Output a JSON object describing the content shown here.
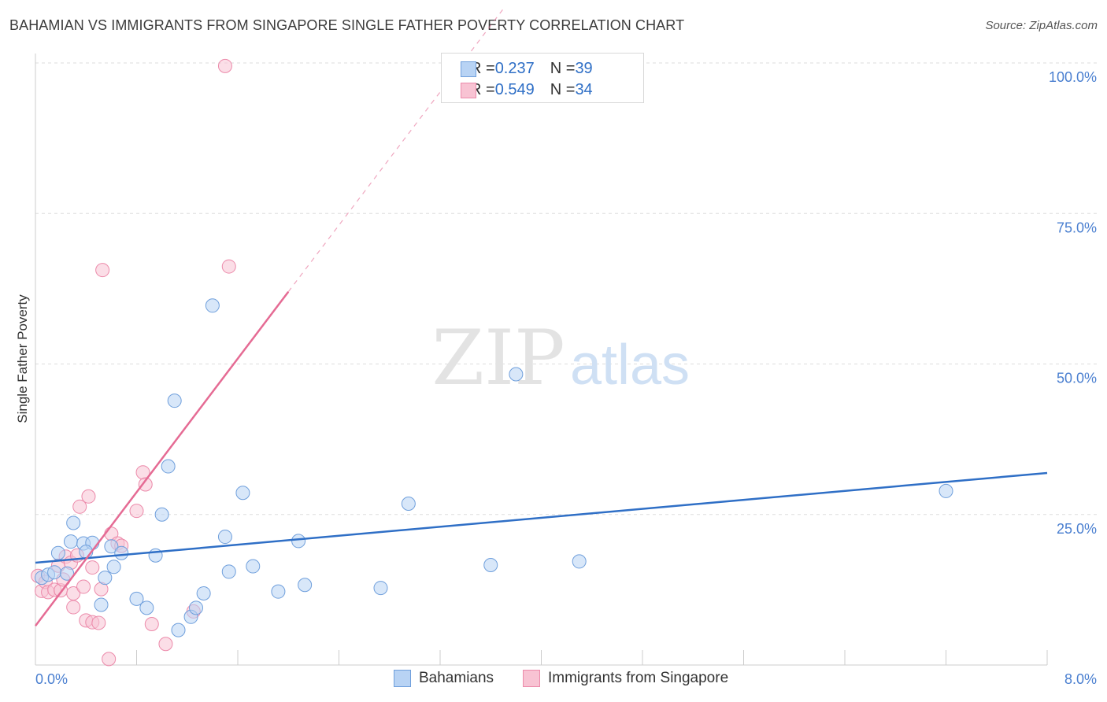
{
  "title": "BAHAMIAN VS IMMIGRANTS FROM SINGAPORE SINGLE FATHER POVERTY CORRELATION CHART",
  "source": "Source: ZipAtlas.com",
  "watermark": {
    "zip": "ZIP",
    "atlas": "atlas"
  },
  "legend_top": {
    "rows": [
      {
        "r_label": "R = ",
        "r_value": "0.237",
        "n_label": "N = ",
        "n_value": "39"
      },
      {
        "r_label": "R = ",
        "r_value": "0.549",
        "n_label": "N = ",
        "n_value": "34"
      }
    ]
  },
  "legend_bottom": [
    "Bahamians",
    "Immigrants from Singapore"
  ],
  "colors": {
    "blue_fill": "#b8d3f4",
    "blue_stroke": "#6f9fdc",
    "blue_line": "#2f6fc6",
    "pink_fill": "#f8c3d3",
    "pink_stroke": "#ec8aaa",
    "pink_line": "#e56b94",
    "grid": "#dddddd",
    "axis_text": "#4a7fd0"
  },
  "chart_data": {
    "type": "scatter",
    "title": "BAHAMIAN VS IMMIGRANTS FROM SINGAPORE SINGLE FATHER POVERTY CORRELATION CHART",
    "xlabel": "",
    "ylabel": "Single Father Poverty",
    "xlim": [
      0,
      8
    ],
    "ylim": [
      0,
      100
    ],
    "x_tick_labels": [
      "0.0%",
      "8.0%"
    ],
    "y_tick_labels": [
      "25.0%",
      "50.0%",
      "75.0%",
      "100.0%"
    ],
    "y_ticks": [
      25,
      50,
      75,
      100
    ],
    "series": [
      {
        "name": "Bahamians",
        "r": 0.237,
        "n": 39,
        "trend": {
          "x": [
            0,
            8
          ],
          "y": [
            17.0,
            31.9
          ]
        },
        "points": [
          [
            0.05,
            14.5
          ],
          [
            0.1,
            15.0
          ],
          [
            0.15,
            15.4
          ],
          [
            0.18,
            18.6
          ],
          [
            0.25,
            15.2
          ],
          [
            0.3,
            23.6
          ],
          [
            0.28,
            20.5
          ],
          [
            0.38,
            20.2
          ],
          [
            0.45,
            20.3
          ],
          [
            0.4,
            18.8
          ],
          [
            0.6,
            19.7
          ],
          [
            0.68,
            18.6
          ],
          [
            0.95,
            18.2
          ],
          [
            0.55,
            14.5
          ],
          [
            0.62,
            16.3
          ],
          [
            0.8,
            11.0
          ],
          [
            0.88,
            9.5
          ],
          [
            0.52,
            10.0
          ],
          [
            1.0,
            25.0
          ],
          [
            1.05,
            33.0
          ],
          [
            1.1,
            43.9
          ],
          [
            1.13,
            5.8
          ],
          [
            1.23,
            8.0
          ],
          [
            1.27,
            9.5
          ],
          [
            1.33,
            11.9
          ],
          [
            1.4,
            59.7
          ],
          [
            1.5,
            21.3
          ],
          [
            1.53,
            15.5
          ],
          [
            1.64,
            28.6
          ],
          [
            1.72,
            16.4
          ],
          [
            1.92,
            12.2
          ],
          [
            2.08,
            20.6
          ],
          [
            2.13,
            13.3
          ],
          [
            2.73,
            12.8
          ],
          [
            2.95,
            26.8
          ],
          [
            3.6,
            16.6
          ],
          [
            3.8,
            48.3
          ],
          [
            4.3,
            17.2
          ],
          [
            7.2,
            28.9
          ]
        ]
      },
      {
        "name": "Immigrants from Singapore",
        "r": 0.549,
        "n": 34,
        "trend_solid": {
          "x": [
            0,
            2.0
          ],
          "y": [
            6.5,
            62.0
          ]
        },
        "trend_dashed": {
          "x": [
            2.0,
            3.7
          ],
          "y": [
            62.0,
            109.0
          ]
        },
        "points": [
          [
            0.02,
            14.8
          ],
          [
            0.05,
            12.3
          ],
          [
            0.08,
            13.8
          ],
          [
            0.1,
            12.1
          ],
          [
            0.15,
            12.5
          ],
          [
            0.18,
            16.5
          ],
          [
            0.2,
            12.4
          ],
          [
            0.22,
            14.2
          ],
          [
            0.24,
            18.0
          ],
          [
            0.28,
            17.0
          ],
          [
            0.3,
            9.6
          ],
          [
            0.3,
            11.9
          ],
          [
            0.33,
            18.2
          ],
          [
            0.35,
            26.3
          ],
          [
            0.4,
            7.4
          ],
          [
            0.42,
            28.0
          ],
          [
            0.45,
            7.1
          ],
          [
            0.45,
            16.2
          ],
          [
            0.5,
            7.0
          ],
          [
            0.52,
            12.6
          ],
          [
            0.53,
            65.6
          ],
          [
            0.58,
            1.0
          ],
          [
            0.6,
            21.8
          ],
          [
            0.65,
            20.2
          ],
          [
            0.68,
            19.8
          ],
          [
            0.8,
            25.6
          ],
          [
            0.85,
            32.0
          ],
          [
            0.87,
            30.0
          ],
          [
            0.92,
            6.8
          ],
          [
            1.03,
            3.5
          ],
          [
            1.25,
            8.9
          ],
          [
            1.5,
            99.5
          ],
          [
            1.53,
            66.2
          ],
          [
            0.38,
            13.0
          ]
        ]
      }
    ]
  }
}
